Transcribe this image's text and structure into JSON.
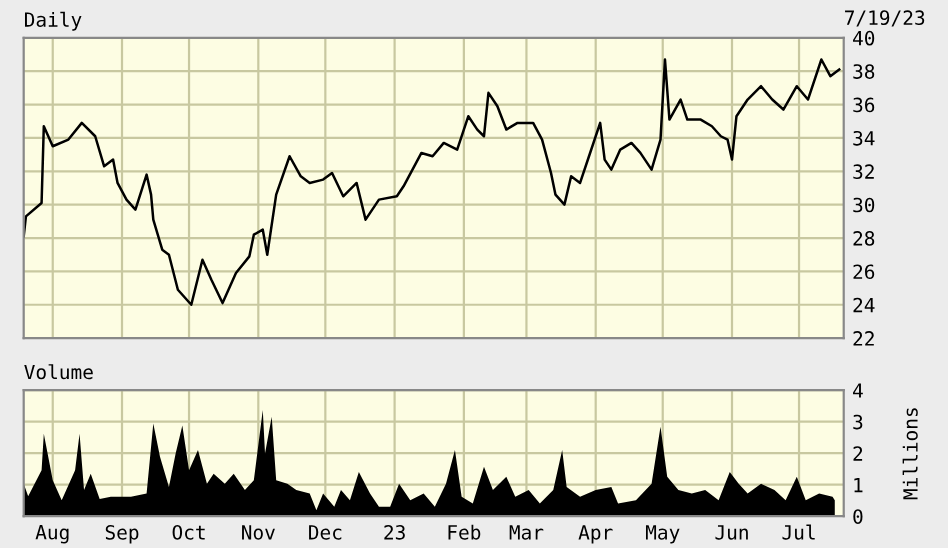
{
  "chart_data": [
    {
      "type": "line",
      "title": "Daily",
      "annotations": [
        "7/19/23"
      ],
      "x": [
        "2022-07-19",
        "2022-07-20",
        "2022-07-27",
        "2022-07-28",
        "2022-08-01",
        "2022-08-08",
        "2022-08-14",
        "2022-08-20",
        "2022-08-24",
        "2022-08-28",
        "2022-08-30",
        "2022-09-03",
        "2022-09-07",
        "2022-09-12",
        "2022-09-14",
        "2022-09-15",
        "2022-09-19",
        "2022-09-22",
        "2022-09-26",
        "2022-10-02",
        "2022-10-07",
        "2022-10-11",
        "2022-10-16",
        "2022-10-22",
        "2022-10-28",
        "2022-10-30",
        "2022-11-03",
        "2022-11-05",
        "2022-11-09",
        "2022-11-15",
        "2022-11-20",
        "2022-11-24",
        "2022-11-30",
        "2022-12-04",
        "2022-12-09",
        "2022-12-15",
        "2022-12-19",
        "2022-12-25",
        "2023-01-02",
        "2023-01-05",
        "2023-01-13",
        "2023-01-18",
        "2023-01-23",
        "2023-01-29",
        "2023-02-03",
        "2023-02-07",
        "2023-02-10",
        "2023-02-12",
        "2023-02-16",
        "2023-02-20",
        "2023-02-25",
        "2023-03-04",
        "2023-03-08",
        "2023-03-12",
        "2023-03-14",
        "2023-03-18",
        "2023-03-21",
        "2023-03-25",
        "2023-03-29",
        "2023-04-03",
        "2023-04-05",
        "2023-04-08",
        "2023-04-12",
        "2023-04-17",
        "2023-04-21",
        "2023-04-26",
        "2023-04-30",
        "2023-05-02",
        "2023-05-04",
        "2023-05-09",
        "2023-05-12",
        "2023-05-18",
        "2023-05-23",
        "2023-05-27",
        "2023-05-30",
        "2023-06-01",
        "2023-06-03",
        "2023-06-08",
        "2023-06-14",
        "2023-06-19",
        "2023-06-24",
        "2023-06-30",
        "2023-07-05",
        "2023-07-11",
        "2023-07-15",
        "2023-07-19"
      ],
      "series": [
        {
          "color": "#000000",
          "values": [
            28.1,
            29.3,
            30.1,
            34.7,
            33.5,
            33.9,
            34.9,
            34.1,
            32.3,
            32.7,
            31.3,
            30.3,
            29.7,
            31.8,
            30.6,
            29.1,
            27.3,
            27.0,
            24.9,
            24.0,
            26.7,
            25.5,
            24.1,
            25.9,
            26.9,
            28.2,
            28.5,
            27.0,
            30.6,
            32.9,
            31.7,
            31.3,
            31.5,
            31.9,
            30.5,
            31.3,
            29.1,
            30.3,
            30.5,
            31.1,
            33.1,
            32.9,
            33.7,
            33.3,
            35.3,
            34.5,
            34.1,
            36.7,
            35.9,
            34.5,
            34.9,
            34.9,
            33.9,
            31.9,
            30.6,
            30.0,
            31.7,
            31.3,
            32.9,
            34.9,
            32.7,
            32.1,
            33.3,
            33.7,
            33.1,
            32.1,
            33.9,
            38.7,
            35.1,
            36.3,
            35.1,
            35.1,
            34.7,
            34.1,
            33.9,
            32.7,
            35.3,
            36.3,
            37.1,
            36.3,
            35.7,
            37.1,
            36.3,
            38.7,
            37.7,
            38.1
          ]
        }
      ],
      "xlim": [
        "2022-07-19",
        "2023-07-21"
      ],
      "xticks": [
        {
          "value": "2022-08-01",
          "label": null
        },
        {
          "value": "2022-09-01",
          "label": null
        },
        {
          "value": "2022-10-01",
          "label": null
        },
        {
          "value": "2022-11-01",
          "label": null
        },
        {
          "value": "2022-12-01",
          "label": null
        },
        {
          "value": "2023-01-01",
          "label": null
        },
        {
          "value": "2023-02-01",
          "label": null
        },
        {
          "value": "2023-03-01",
          "label": null
        },
        {
          "value": "2023-04-01",
          "label": null
        },
        {
          "value": "2023-05-01",
          "label": null
        },
        {
          "value": "2023-06-01",
          "label": null
        },
        {
          "value": "2023-07-01",
          "label": null
        }
      ],
      "ylim": [
        22,
        40
      ],
      "yticks": [
        22,
        24,
        26,
        28,
        30,
        32,
        34,
        36,
        38,
        40
      ],
      "grid": true,
      "tick_labels": "y"
    },
    {
      "type": "area",
      "title": "Volume",
      "ylabel": "Millions",
      "x": [
        "2022-07-19",
        "2022-07-21",
        "2022-07-27",
        "2022-07-28",
        "2022-08-01",
        "2022-08-05",
        "2022-08-11",
        "2022-08-13",
        "2022-08-15",
        "2022-08-18",
        "2022-08-22",
        "2022-08-27",
        "2022-09-05",
        "2022-09-12",
        "2022-09-15",
        "2022-09-18",
        "2022-09-22",
        "2022-09-25",
        "2022-09-28",
        "2022-10-01",
        "2022-10-05",
        "2022-10-09",
        "2022-10-12",
        "2022-10-17",
        "2022-10-21",
        "2022-10-26",
        "2022-10-30",
        "2022-11-03",
        "2022-11-04",
        "2022-11-07",
        "2022-11-09",
        "2022-11-14",
        "2022-11-18",
        "2022-11-24",
        "2022-11-27",
        "2022-11-30",
        "2022-12-05",
        "2022-12-08",
        "2022-12-12",
        "2022-12-16",
        "2022-12-21",
        "2022-12-25",
        "2022-12-30",
        "2023-01-03",
        "2023-01-08",
        "2023-01-14",
        "2023-01-19",
        "2023-01-24",
        "2023-01-28",
        "2023-01-31",
        "2023-02-05",
        "2023-02-10",
        "2023-02-14",
        "2023-02-20",
        "2023-02-24",
        "2023-03-02",
        "2023-03-07",
        "2023-03-13",
        "2023-03-17",
        "2023-03-19",
        "2023-03-25",
        "2023-04-01",
        "2023-04-08",
        "2023-04-11",
        "2023-04-19",
        "2023-04-26",
        "2023-04-30",
        "2023-05-03",
        "2023-05-08",
        "2023-05-14",
        "2023-05-20",
        "2023-05-26",
        "2023-05-31",
        "2023-06-04",
        "2023-06-08",
        "2023-06-14",
        "2023-06-20",
        "2023-06-25",
        "2023-06-30",
        "2023-07-04",
        "2023-07-10",
        "2023-07-16",
        "2023-07-17"
      ],
      "series": [
        {
          "color": "#000000",
          "values": [
            1.03,
            0.63,
            1.46,
            2.62,
            1.14,
            0.51,
            1.46,
            2.62,
            0.83,
            1.35,
            0.55,
            0.62,
            0.62,
            0.72,
            2.94,
            1.89,
            0.93,
            1.99,
            2.88,
            1.46,
            2.1,
            1.03,
            1.35,
            1.03,
            1.35,
            0.83,
            1.14,
            3.37,
            1.99,
            3.16,
            1.14,
            1.03,
            0.83,
            0.72,
            0.19,
            0.72,
            0.3,
            0.83,
            0.51,
            1.4,
            0.72,
            0.3,
            0.3,
            1.03,
            0.51,
            0.72,
            0.3,
            1.03,
            2.1,
            0.62,
            0.4,
            1.57,
            0.83,
            1.25,
            0.62,
            0.83,
            0.4,
            0.83,
            2.1,
            0.93,
            0.62,
            0.83,
            0.93,
            0.4,
            0.51,
            1.03,
            2.84,
            1.25,
            0.83,
            0.72,
            0.83,
            0.51,
            1.4,
            1.03,
            0.72,
            1.03,
            0.83,
            0.51,
            1.25,
            0.51,
            0.72,
            0.62,
            0.51
          ]
        }
      ],
      "xlim": [
        "2022-07-19",
        "2023-07-21"
      ],
      "xticks": [
        {
          "value": "2022-08-01",
          "label": "Aug"
        },
        {
          "value": "2022-09-01",
          "label": "Sep"
        },
        {
          "value": "2022-10-01",
          "label": "Oct"
        },
        {
          "value": "2022-11-01",
          "label": "Nov"
        },
        {
          "value": "2022-12-01",
          "label": "Dec"
        },
        {
          "value": "2023-01-01",
          "label": "23"
        },
        {
          "value": "2023-02-01",
          "label": "Feb"
        },
        {
          "value": "2023-03-01",
          "label": "Mar"
        },
        {
          "value": "2023-04-01",
          "label": "Apr"
        },
        {
          "value": "2023-05-01",
          "label": "May"
        },
        {
          "value": "2023-06-01",
          "label": "Jun"
        },
        {
          "value": "2023-07-01",
          "label": "Jul"
        }
      ],
      "ylim": [
        0,
        4
      ],
      "yticks": [
        0,
        1,
        2,
        3,
        4
      ],
      "grid": true
    }
  ]
}
